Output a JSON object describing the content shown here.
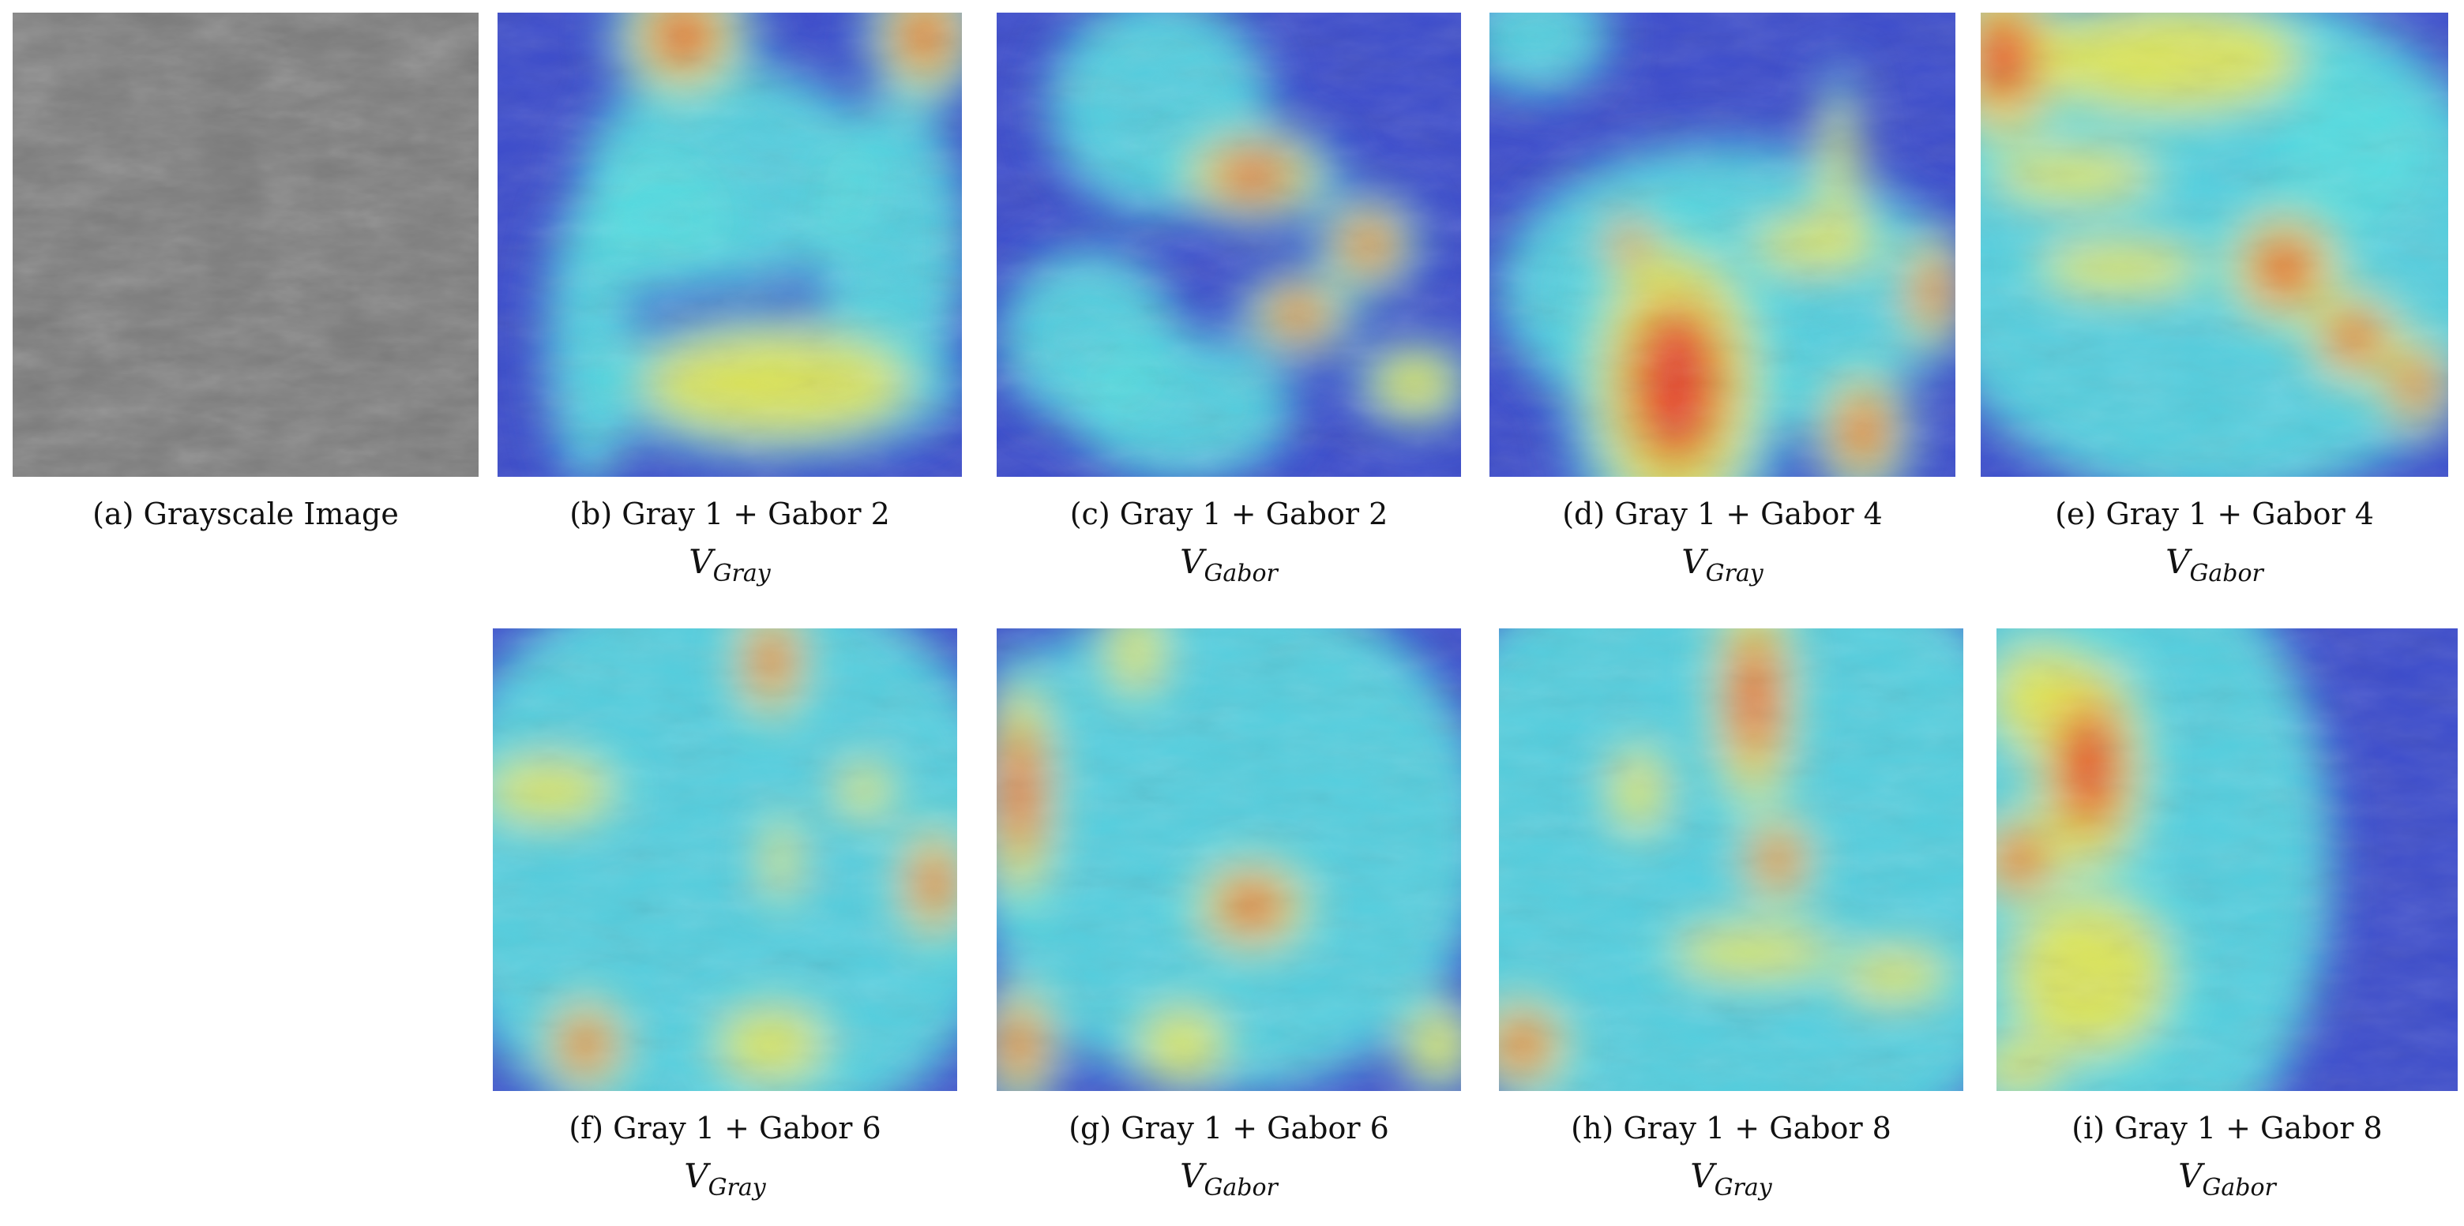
{
  "panels": [
    {
      "caption": "(a) Grayscale Image"
    },
    {
      "caption": "(b) Gray 1 + Gabor 2",
      "symbol": "V",
      "subscript": "Gray"
    },
    {
      "caption": "(c) Gray 1 + Gabor 2",
      "symbol": "V",
      "subscript": "Gabor"
    },
    {
      "caption": "(d) Gray 1 + Gabor 4",
      "symbol": "V",
      "subscript": "Gray"
    },
    {
      "caption": "(e) Gray 1 + Gabor 4",
      "symbol": "V",
      "subscript": "Gabor"
    },
    {
      "caption": "(f) Gray 1 + Gabor 6",
      "symbol": "V",
      "subscript": "Gray"
    },
    {
      "caption": "(g) Gray 1 + Gabor 6",
      "symbol": "V",
      "subscript": "Gabor"
    },
    {
      "caption": "(h) Gray 1 + Gabor 8",
      "symbol": "V",
      "subscript": "Gray"
    },
    {
      "caption": "(i) Gray 1 + Gabor 8",
      "symbol": "V",
      "subscript": "Gabor"
    }
  ]
}
